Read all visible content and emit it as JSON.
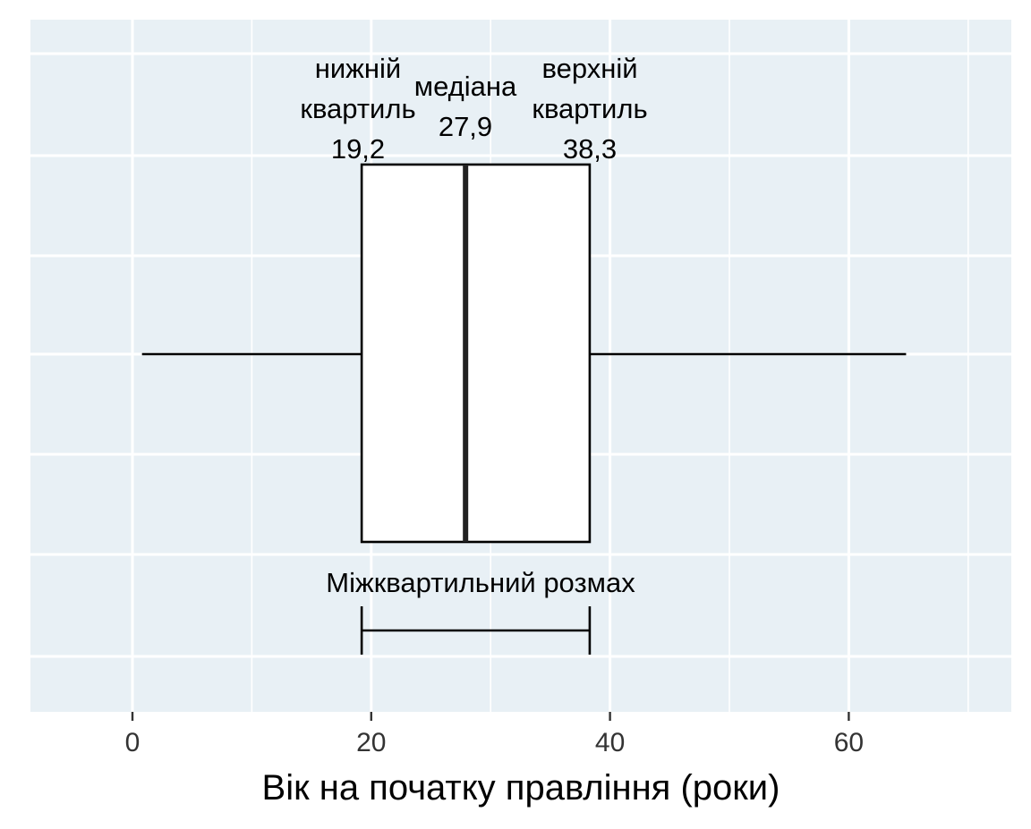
{
  "chart_data": {
    "type": "box",
    "orientation": "horizontal",
    "xlabel": "Вік на початку правління (роки)",
    "ylabel": "",
    "title": "",
    "xlim": [
      -8.5,
      73.5
    ],
    "xticks": [
      0,
      20,
      40,
      60
    ],
    "xtick_labels": [
      "0",
      "20",
      "40",
      "60"
    ],
    "grid": true,
    "background_color": "#e8f0f5",
    "grid_color": "#ffffff",
    "box": {
      "whisker_low": 0.8,
      "q1": 19.2,
      "median": 27.9,
      "q3": 38.3,
      "whisker_high": 64.8
    },
    "annotations": {
      "q1_label": [
        "нижній",
        "квартиль",
        "19,2"
      ],
      "median_label": [
        "медіана",
        "27,9"
      ],
      "q3_label": [
        "верхній",
        "квартиль",
        "38,3"
      ],
      "iqr_label": "Міжквартильний розмах"
    }
  }
}
